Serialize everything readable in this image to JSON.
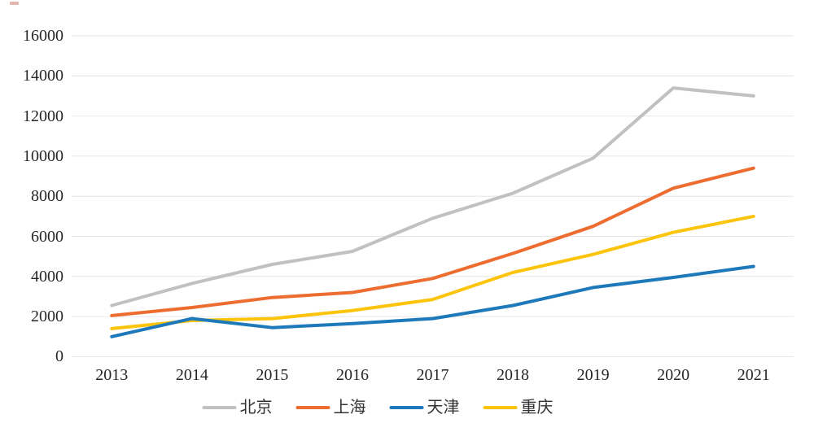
{
  "page": {
    "background": "#ffffff"
  },
  "chart_data": {
    "type": "line",
    "title": "",
    "xlabel": "",
    "ylabel": "",
    "categories": [
      "2013",
      "2014",
      "2015",
      "2016",
      "2017",
      "2018",
      "2019",
      "2020",
      "2021"
    ],
    "series": [
      {
        "name": "北京",
        "slug": "beijing",
        "color": "#c2c1c0",
        "values": [
          2550,
          3650,
          4600,
          5250,
          6900,
          8150,
          9900,
          13400,
          13000
        ]
      },
      {
        "name": "上海",
        "slug": "shanghai",
        "color": "#ed6c30",
        "values": [
          2050,
          2450,
          2950,
          3200,
          3900,
          5150,
          6500,
          8400,
          9400
        ]
      },
      {
        "name": "天津",
        "slug": "tianjin",
        "color": "#1e79bb",
        "values": [
          1000,
          1900,
          1450,
          1650,
          1900,
          2550,
          3450,
          3950,
          4500
        ]
      },
      {
        "name": "重庆",
        "slug": "chongqing",
        "color": "#fdc40d",
        "values": [
          1400,
          1800,
          1900,
          2300,
          2850,
          4200,
          5100,
          6200,
          7000
        ]
      }
    ],
    "ylim": [
      0,
      16000
    ],
    "yticks": [
      0,
      2000,
      4000,
      6000,
      8000,
      10000,
      12000,
      14000,
      16000
    ],
    "grid": "horizontal",
    "gridline_color": "#e6e6e6",
    "tick_label_color": "#262626",
    "legend_position": "bottom",
    "draw_order": [
      "北京",
      "上海",
      "重庆",
      "天津"
    ]
  }
}
